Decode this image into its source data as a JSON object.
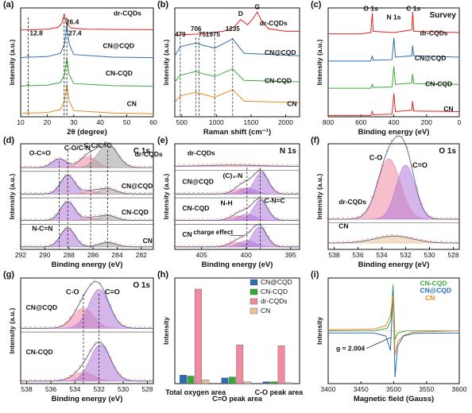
{
  "colors": {
    "red": "#e2231a",
    "blue": "#2b6cb5",
    "green": "#39a935",
    "orange": "#e8881f",
    "pink": "#f08aa0",
    "violet": "#b07ad8",
    "tan": "#e9c29a",
    "grey": "#9e9e9e"
  },
  "chart_data": [
    {
      "panel": "(a)",
      "type": "line",
      "xlabel": "2θ (degree)",
      "ylabel": "Intensity (a.u.)",
      "xlim": [
        10,
        60
      ],
      "xticks": [
        "10",
        "20",
        "30",
        "40",
        "50",
        "60"
      ],
      "ylim": [
        0,
        4.2
      ],
      "annotations": [
        "26.4",
        "27.4",
        "12.8"
      ],
      "series": [
        {
          "name": "dr-CQDs",
          "color": "red",
          "x": [
            10,
            15,
            20,
            24,
            25.5,
            26.4,
            27.2,
            29,
            35,
            45,
            60
          ],
          "y": [
            3.35,
            3.36,
            3.38,
            3.45,
            3.6,
            3.98,
            3.6,
            3.42,
            3.38,
            3.37,
            3.36
          ]
        },
        {
          "name": "CN@CQD",
          "color": "blue",
          "x": [
            10,
            12.2,
            12.8,
            13.4,
            20,
            25,
            26.5,
            27.4,
            28.3,
            30,
            45,
            60
          ],
          "y": [
            2.28,
            2.3,
            2.36,
            2.3,
            2.32,
            2.45,
            2.8,
            3.55,
            2.8,
            2.4,
            2.3,
            2.28
          ]
        },
        {
          "name": "CN-CQD",
          "color": "green",
          "x": [
            10,
            12.2,
            12.8,
            13.4,
            20,
            25,
            26.5,
            27.4,
            28.3,
            30,
            45,
            60
          ],
          "y": [
            1.18,
            1.2,
            1.26,
            1.2,
            1.22,
            1.32,
            1.62,
            2.25,
            1.62,
            1.28,
            1.2,
            1.18
          ]
        },
        {
          "name": "CN",
          "color": "orange",
          "x": [
            10,
            12.2,
            12.8,
            13.4,
            20,
            25,
            26.5,
            27.4,
            28.3,
            30,
            45,
            60
          ],
          "y": [
            0.12,
            0.14,
            0.2,
            0.14,
            0.16,
            0.28,
            0.6,
            1.25,
            0.6,
            0.24,
            0.14,
            0.12
          ]
        }
      ]
    },
    {
      "panel": "(b)",
      "type": "line",
      "xlabel": "Raman shift (cm⁻¹)",
      "ylabel": "Intensity (a.u.)",
      "xlim": [
        400,
        2200
      ],
      "xticks": [
        "500",
        "1000",
        "1500",
        "2000"
      ],
      "ylim": [
        0,
        4.2
      ],
      "annotations": [
        "G",
        "D",
        "479",
        "706",
        "751",
        "975",
        "1235"
      ],
      "series": [
        {
          "name": "dr-CQDs",
          "color": "red",
          "x": [
            400,
            800,
            1100,
            1250,
            1350,
            1450,
            1530,
            1590,
            1650,
            1750,
            2000,
            2200
          ],
          "y": [
            3.15,
            3.2,
            3.3,
            3.45,
            3.75,
            3.55,
            3.8,
            4.05,
            3.7,
            3.4,
            3.3,
            3.3
          ]
        },
        {
          "name": "CN@CQD",
          "color": "blue",
          "x": [
            400,
            479,
            706,
            751,
            975,
            1235,
            1400,
            2200
          ],
          "y": [
            2.35,
            2.7,
            2.85,
            2.8,
            2.65,
            3.0,
            2.45,
            2.35
          ]
        },
        {
          "name": "CN-CQD",
          "color": "green",
          "x": [
            400,
            479,
            706,
            751,
            975,
            1235,
            1400,
            2200
          ],
          "y": [
            1.35,
            1.6,
            1.75,
            1.7,
            1.55,
            1.85,
            1.4,
            1.35
          ]
        },
        {
          "name": "CN",
          "color": "orange",
          "x": [
            400,
            479,
            706,
            751,
            975,
            1235,
            1400,
            2200
          ],
          "y": [
            0.55,
            0.8,
            0.95,
            0.9,
            0.75,
            1.05,
            0.6,
            0.55
          ]
        }
      ]
    },
    {
      "panel": "(c)",
      "type": "line",
      "title": "Survey",
      "xlabel": "Binding energy (eV)",
      "ylabel": "Intensity (a.u.)",
      "xlim": [
        800,
        0
      ],
      "xticks": [
        "800",
        "600",
        "400",
        "200",
        "0"
      ],
      "ylim": [
        0,
        4.2
      ],
      "annotations": [
        "O 1s",
        "N 1s",
        "C 1s"
      ],
      "series": [
        {
          "name": "dr-CQDs",
          "color": "red",
          "x": [
            800,
            600,
            540,
            531,
            525,
            400,
            290,
            284,
            278,
            0
          ],
          "y": [
            3.2,
            3.2,
            3.25,
            4.0,
            3.3,
            3.25,
            3.35,
            4.05,
            3.3,
            3.25
          ]
        },
        {
          "name": "CN@CQD",
          "color": "blue",
          "x": [
            800,
            540,
            531,
            525,
            410,
            399,
            390,
            290,
            285,
            278,
            0
          ],
          "y": [
            2.15,
            2.15,
            2.35,
            2.18,
            2.2,
            3.05,
            2.3,
            2.35,
            2.75,
            2.35,
            2.3
          ]
        },
        {
          "name": "CN-CQD",
          "color": "green",
          "x": [
            800,
            540,
            531,
            525,
            410,
            399,
            390,
            290,
            285,
            278,
            0
          ],
          "y": [
            1.1,
            1.1,
            1.25,
            1.13,
            1.15,
            1.95,
            1.25,
            1.3,
            1.65,
            1.28,
            1.25
          ]
        },
        {
          "name": "CN",
          "color": "red",
          "x": [
            800,
            540,
            531,
            525,
            410,
            399,
            390,
            290,
            285,
            278,
            0
          ],
          "y": [
            0.05,
            0.05,
            0.2,
            0.08,
            0.1,
            0.9,
            0.2,
            0.25,
            0.6,
            0.22,
            0.2
          ]
        }
      ]
    },
    {
      "panel": "(d)",
      "type": "line",
      "title": "C 1s",
      "xlabel": "Binding energy (eV)",
      "ylabel": "Intensity (a.u.)",
      "xlim": [
        292,
        281
      ],
      "xticks": [
        "292",
        "290",
        "288",
        "286",
        "284",
        "282"
      ],
      "ylim": [
        0,
        4.2
      ],
      "annotations": [
        "O-C=O",
        "C-O/C-N",
        "C-C/C=C",
        "N-C=N"
      ],
      "series": [
        {
          "name": "dr-CQDs",
          "baseline": 3.25,
          "peaks": [
            {
              "center": 288.8,
              "height": 0.35,
              "width": 0.6,
              "fill": "violet"
            },
            {
              "center": 286.4,
              "height": 0.45,
              "width": 0.7,
              "fill": "pink"
            },
            {
              "center": 284.8,
              "height": 0.95,
              "width": 0.8,
              "fill": "grey"
            }
          ]
        },
        {
          "name": "CN@CQD",
          "baseline": 2.2,
          "peaks": [
            {
              "center": 288.1,
              "height": 0.75,
              "width": 0.6,
              "fill": "violet"
            },
            {
              "center": 286.2,
              "height": 0.12,
              "width": 0.6,
              "fill": "pink"
            },
            {
              "center": 284.8,
              "height": 0.22,
              "width": 0.7,
              "fill": "grey"
            }
          ]
        },
        {
          "name": "CN-CQD",
          "baseline": 1.15,
          "peaks": [
            {
              "center": 288.1,
              "height": 0.75,
              "width": 0.6,
              "fill": "violet"
            },
            {
              "center": 286.2,
              "height": 0.1,
              "width": 0.6,
              "fill": "pink"
            },
            {
              "center": 284.8,
              "height": 0.2,
              "width": 0.7,
              "fill": "grey"
            }
          ]
        },
        {
          "name": "CN",
          "baseline": 0.1,
          "peaks": [
            {
              "center": 288.1,
              "height": 0.75,
              "width": 0.6,
              "fill": "violet"
            },
            {
              "center": 284.8,
              "height": 0.18,
              "width": 0.7,
              "fill": "grey"
            }
          ]
        }
      ]
    },
    {
      "panel": "(e)",
      "type": "line",
      "title": "N 1s",
      "xlabel": "Binding energy (eV)",
      "ylabel": "Intensity (a.u.)",
      "xlim": [
        408,
        394
      ],
      "xticks": [
        "405",
        "400",
        "395"
      ],
      "ylim": [
        0,
        4.2
      ],
      "annotations": [
        "(C)₃-N",
        "N-H",
        "C-N=C",
        "charge effect"
      ],
      "series": [
        {
          "name": "dr-CQDs",
          "baseline": 3.3,
          "peaks": [
            {
              "center": 401.5,
              "height": 0.05,
              "width": 3.0,
              "fill": "pink"
            }
          ]
        },
        {
          "name": "CN@CQD",
          "baseline": 2.2,
          "peaks": [
            {
              "center": 400.5,
              "height": 0.22,
              "width": 0.9,
              "fill": "pink"
            },
            {
              "center": 399.8,
              "height": 0.25,
              "width": 0.9,
              "fill": "violet"
            },
            {
              "center": 398.3,
              "height": 0.85,
              "width": 0.8,
              "fill": "violet"
            }
          ]
        },
        {
          "name": "CN-CQD",
          "baseline": 1.15,
          "peaks": [
            {
              "center": 400.9,
              "height": 0.18,
              "width": 0.9,
              "fill": "pink"
            },
            {
              "center": 399.9,
              "height": 0.25,
              "width": 0.9,
              "fill": "violet"
            },
            {
              "center": 398.4,
              "height": 0.8,
              "width": 0.8,
              "fill": "violet"
            }
          ]
        },
        {
          "name": "CN",
          "baseline": 0.1,
          "peaks": [
            {
              "center": 401.0,
              "height": 0.18,
              "width": 0.9,
              "fill": "pink"
            },
            {
              "center": 399.9,
              "height": 0.25,
              "width": 0.9,
              "fill": "violet"
            },
            {
              "center": 398.5,
              "height": 0.8,
              "width": 0.8,
              "fill": "violet"
            }
          ]
        }
      ]
    },
    {
      "panel": "(f)",
      "type": "line",
      "title": "O 1s",
      "xlabel": "Binding energy (eV)",
      "ylabel": "Intensity (a.u.)",
      "xlim": [
        538.5,
        527.5
      ],
      "xticks": [
        "538",
        "536",
        "534",
        "532",
        "530",
        "528"
      ],
      "ylim": [
        0,
        4.2
      ],
      "annotations": [
        "C-O",
        "C=O"
      ],
      "series": [
        {
          "name": "dr-CQDs",
          "baseline": 1.2,
          "peaks": [
            {
              "center": 533.4,
              "height": 2.4,
              "width": 0.95,
              "fill": "pink"
            },
            {
              "center": 532.0,
              "height": 2.15,
              "width": 0.8,
              "fill": "violet"
            }
          ]
        },
        {
          "name": "CN",
          "baseline": 0.25,
          "peaks": [
            {
              "center": 533.0,
              "height": 0.28,
              "width": 1.6,
              "fill": "tan"
            }
          ]
        }
      ]
    },
    {
      "panel": "(g)",
      "type": "line",
      "title": "O 1s",
      "xlabel": "Binding energy (eV)",
      "ylabel": "Intensity (a.u.)",
      "xlim": [
        538.5,
        527.5
      ],
      "xticks": [
        "538",
        "536",
        "534",
        "532",
        "530",
        "528"
      ],
      "ylim": [
        0,
        4.2
      ],
      "annotations": [
        "C-O",
        "C=O"
      ],
      "series": [
        {
          "name": "CN@CQD",
          "baseline": 2.2,
          "peaks": [
            {
              "center": 533.3,
              "height": 0.8,
              "width": 0.85,
              "fill": "pink"
            },
            {
              "center": 532.0,
              "height": 1.55,
              "width": 0.85,
              "fill": "violet"
            }
          ]
        },
        {
          "name": "CN-CQD",
          "baseline": 0.1,
          "peaks": [
            {
              "center": 533.3,
              "height": 0.35,
              "width": 0.85,
              "fill": "pink"
            },
            {
              "center": 531.9,
              "height": 1.45,
              "width": 0.85,
              "fill": "violet"
            }
          ]
        }
      ]
    },
    {
      "panel": "(h)",
      "type": "bar",
      "ylabel": "Intensity",
      "ylim": [
        0,
        100
      ],
      "categories": [
        "Total oxygen area",
        "C=O peak area",
        "C-O peak area"
      ],
      "series": [
        {
          "name": "CN@CQD",
          "color": "blue",
          "values": [
            9,
            6,
            2
          ]
        },
        {
          "name": "CN-CQD",
          "color": "green",
          "values": [
            8,
            7,
            2
          ]
        },
        {
          "name": "dr-CQDs",
          "color": "pink",
          "values": [
            100,
            41,
            40
          ]
        },
        {
          "name": "CN",
          "color": "tan",
          "values": [
            4,
            2,
            1
          ]
        }
      ]
    },
    {
      "panel": "(i)",
      "type": "line",
      "xlabel": "Magnetic field (Gauss)",
      "ylabel": "Intensity",
      "xlim": [
        3400,
        3600
      ],
      "xticks": [
        "3400",
        "3450",
        "3500",
        "3550",
        "3600"
      ],
      "ylim": [
        -1.2,
        1.2
      ],
      "annotations": [
        "g = 2.004"
      ],
      "series": [
        {
          "name": "CN-CQD",
          "color": "green",
          "x": [
            3400,
            3470,
            3490,
            3496,
            3499,
            3502,
            3506,
            3520,
            3600
          ],
          "y": [
            0,
            0,
            0.06,
            0.25,
            1.05,
            -0.2,
            -0.05,
            0,
            0
          ]
        },
        {
          "name": "CN@CQD",
          "color": "blue",
          "x": [
            3400,
            3470,
            3488,
            3495,
            3499,
            3502,
            3506,
            3515,
            3530,
            3600
          ],
          "y": [
            -0.05,
            -0.05,
            -0.12,
            -0.45,
            0.9,
            -1.05,
            -0.35,
            -0.12,
            -0.06,
            -0.05
          ]
        },
        {
          "name": "CN",
          "color": "orange",
          "x": [
            3400,
            3470,
            3488,
            3495,
            3499,
            3502,
            3506,
            3515,
            3530,
            3600
          ],
          "y": [
            0.02,
            0.04,
            0.12,
            0.35,
            0.8,
            -0.55,
            -0.25,
            -0.1,
            -0.03,
            0
          ]
        }
      ]
    }
  ]
}
